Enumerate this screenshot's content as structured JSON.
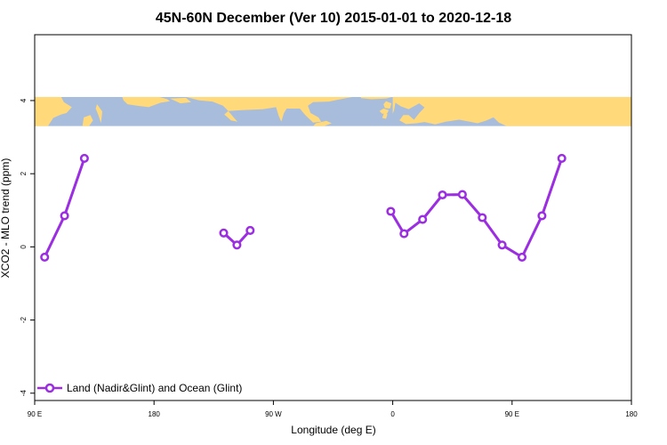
{
  "chart_data": {
    "type": "line",
    "title": "45N-60N December (Ver 10)   2015-01-01 to 2020-12-18",
    "xlabel": "Longitude (deg E)",
    "ylabel": "XCO2 - MLO trend (ppm)",
    "xlim": [
      90,
      540
    ],
    "ylim": [
      -4.2,
      5.8
    ],
    "grid": false,
    "legend_position": "bottom-left",
    "x_ticks": [
      {
        "value": 90,
        "label": "90 E"
      },
      {
        "value": 180,
        "label": "180"
      },
      {
        "value": 270,
        "label": "90 W"
      },
      {
        "value": 360,
        "label": "0"
      },
      {
        "value": 450,
        "label": "90 E"
      },
      {
        "value": 540,
        "label": "180"
      }
    ],
    "y_ticks": [
      {
        "value": 4,
        "label": "4"
      },
      {
        "value": 2,
        "label": "2"
      },
      {
        "value": 0,
        "label": "0"
      },
      {
        "value": -2,
        "label": "-2"
      },
      {
        "value": -4,
        "label": "-4"
      }
    ],
    "map_band": {
      "ymin": 3.3,
      "ymax": 4.1,
      "ocean_color": "#a8bcdc",
      "land_color": "#ffd97a"
    },
    "series": [
      {
        "name": "Land (Nadir&Glint) and Ocean (Glint)",
        "color": "#9a2ee0",
        "segments": [
          [
            [
              97.5,
              -0.28
            ],
            [
              112.5,
              0.85
            ],
            [
              127.5,
              2.42
            ]
          ],
          [
            [
              232.5,
              0.38
            ],
            [
              242.5,
              0.05
            ],
            [
              252.5,
              0.45
            ]
          ],
          [
            [
              358.5,
              0.97
            ],
            [
              368.5,
              0.36
            ],
            [
              382.5,
              0.75
            ],
            [
              397.5,
              1.42
            ],
            [
              412.5,
              1.43
            ],
            [
              427.5,
              0.8
            ],
            [
              442.5,
              0.05
            ],
            [
              457.5,
              -0.28
            ],
            [
              472.5,
              0.85
            ],
            [
              487.5,
              2.42
            ]
          ]
        ]
      }
    ]
  }
}
